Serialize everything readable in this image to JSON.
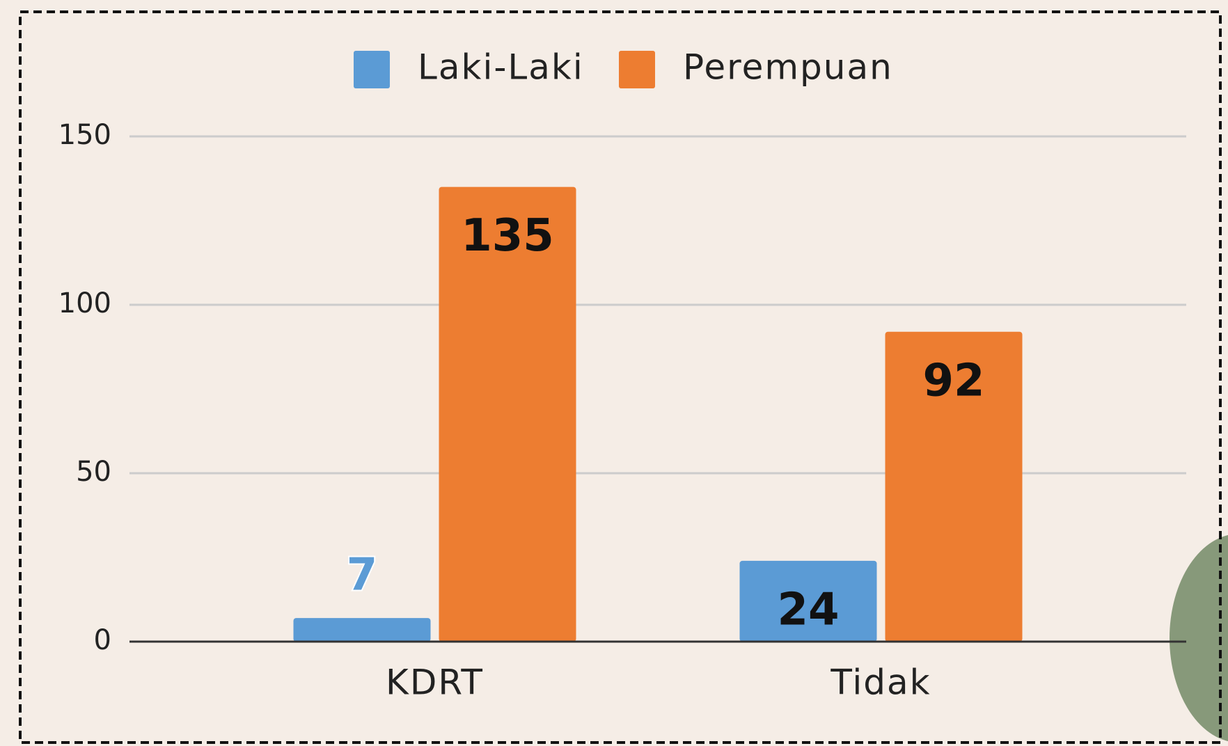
{
  "chart_data": {
    "type": "bar",
    "categories": [
      "KDRT",
      "Tidak"
    ],
    "series": [
      {
        "name": "Laki-Laki",
        "color": "#5b9bd5",
        "values": [
          7,
          24
        ]
      },
      {
        "name": "Perempuan",
        "color": "#ed7d31",
        "values": [
          135,
          92
        ]
      }
    ],
    "ylim": [
      0,
      150
    ],
    "yticks": [
      0,
      50,
      100,
      150
    ],
    "grid": true,
    "legend": "top"
  }
}
